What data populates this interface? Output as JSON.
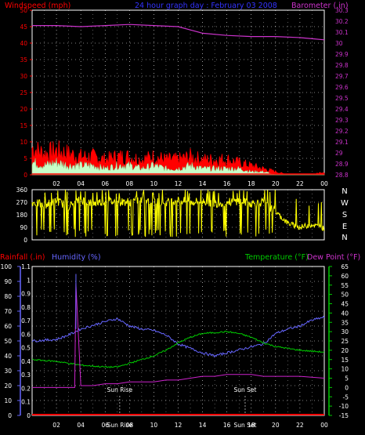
{
  "header": {
    "left": "Windspeed (mph)",
    "center": "24 hour graph day : February 03 2008",
    "right": "Barometer (.in)"
  },
  "colors": {
    "background": "#000000",
    "windspeed": "#ff0000",
    "wind_avg": "#c8ffc8",
    "barometer": "#cc33cc",
    "direction": "#ffff00",
    "rainfall": "#ff0000",
    "humidity": "#6666ff",
    "temperature": "#00cc00",
    "dewpoint": "#cc22cc",
    "grid": "#ffffff",
    "sun": "#ffffff"
  },
  "chart_data": [
    {
      "type": "area",
      "x_ticks": [
        "02",
        "04",
        "06",
        "08",
        "10",
        "12",
        "14",
        "16",
        "18",
        "20",
        "22",
        "00"
      ],
      "y_left_ticks": [
        "0",
        "5",
        "10",
        "15",
        "20",
        "25",
        "30",
        "35",
        "40",
        "45",
        "50"
      ],
      "y_left_range": [
        0,
        50
      ],
      "y_right_ticks": [
        "28.8",
        "28.9",
        "29",
        "29.1",
        "29.2",
        "29.3",
        "29.4",
        "29.5",
        "29.6",
        "29.7",
        "29.8",
        "29.9",
        "30",
        "30.1",
        "30.2",
        "30.3"
      ],
      "y_right_range": [
        28.8,
        30.3
      ],
      "series": [
        {
          "name": "Windspeed",
          "axis": "left",
          "x": [
            0,
            1,
            2,
            3,
            4,
            5,
            6,
            7,
            8,
            9,
            10,
            11,
            12,
            13,
            14,
            15,
            16,
            17,
            18,
            19,
            20,
            21,
            22,
            23,
            24
          ],
          "values": [
            9,
            7,
            8,
            7,
            6,
            6,
            5,
            6,
            6,
            5,
            6,
            5,
            5,
            6,
            5,
            5,
            5,
            4,
            3,
            2,
            1,
            0,
            0,
            0,
            1
          ]
        },
        {
          "name": "Wind Average",
          "axis": "left",
          "x": [
            0,
            1,
            2,
            3,
            4,
            5,
            6,
            7,
            8,
            9,
            10,
            11,
            12,
            13,
            14,
            15,
            16,
            17,
            18,
            19,
            20,
            21,
            22,
            23,
            24
          ],
          "values": [
            4,
            3,
            4,
            3,
            3,
            3,
            2,
            3,
            3,
            2,
            3,
            2,
            2,
            3,
            2,
            2,
            2,
            2,
            1,
            1,
            0,
            0,
            0,
            0,
            0
          ]
        },
        {
          "name": "Barometer",
          "axis": "right",
          "x": [
            0,
            2,
            4,
            6,
            8,
            10,
            12,
            13,
            14,
            16,
            18,
            20,
            22,
            23,
            24
          ],
          "values": [
            30.16,
            30.16,
            30.15,
            30.16,
            30.17,
            30.16,
            30.15,
            30.12,
            30.09,
            30.07,
            30.06,
            30.06,
            30.05,
            30.04,
            30.03
          ]
        }
      ]
    },
    {
      "type": "line",
      "x_ticks": [
        "02",
        "04",
        "06",
        "08",
        "10",
        "12",
        "14",
        "16",
        "18",
        "20",
        "22",
        "00"
      ],
      "y_left_ticks": [
        "0",
        "90",
        "180",
        "270",
        "360"
      ],
      "y_left_range": [
        0,
        360
      ],
      "y_right_ticks": [
        "N",
        "W",
        "S",
        "E",
        "N"
      ],
      "series": [
        {
          "name": "Wind Direction",
          "x": [
            0,
            1,
            2,
            3,
            4,
            5,
            6,
            7,
            8,
            9,
            10,
            11,
            12,
            13,
            14,
            15,
            16,
            17,
            18,
            19,
            20,
            21,
            22,
            23,
            24
          ],
          "values": [
            270,
            250,
            280,
            240,
            290,
            260,
            280,
            270,
            275,
            290,
            280,
            270,
            285,
            270,
            280,
            260,
            270,
            280,
            260,
            270,
            200,
            120,
            90,
            110,
            80
          ]
        }
      ]
    },
    {
      "type": "line",
      "x_ticks": [
        "02",
        "04",
        "06",
        "08",
        "10",
        "12",
        "14",
        "16",
        "18",
        "20",
        "22",
        "00"
      ],
      "y_left_ticks": [
        "0",
        "10",
        "20",
        "30",
        "40",
        "50",
        "60",
        "70",
        "80",
        "90",
        "100"
      ],
      "y_left_range": [
        0,
        100
      ],
      "y_rain_ticks": [
        "0",
        "0.1",
        "0.2",
        "0.3",
        "0.4",
        "0.5",
        "0.6",
        "0.7",
        "0.8",
        "0.9",
        "1",
        "1.1"
      ],
      "y_rain_range": [
        0,
        1.1
      ],
      "y_right_ticks": [
        "-15",
        "-10",
        "-5",
        "0",
        "5",
        "10",
        "15",
        "20",
        "25",
        "30",
        "35",
        "40",
        "45",
        "50",
        "55",
        "60",
        "65"
      ],
      "y_right_range": [
        -15,
        65
      ],
      "series": [
        {
          "name": "Rainfall",
          "axis": "rain",
          "x": [
            0,
            24
          ],
          "values": [
            0,
            0
          ]
        },
        {
          "name": "Humidity",
          "axis": "left",
          "x": [
            0,
            2,
            3,
            4,
            6,
            7,
            8,
            9,
            10,
            11,
            12,
            13,
            14,
            15,
            16,
            17,
            18,
            19,
            20,
            21,
            22,
            23,
            24
          ],
          "values": [
            50,
            51,
            54,
            58,
            63,
            65,
            60,
            58,
            57,
            54,
            48,
            45,
            42,
            40,
            42,
            44,
            46,
            48,
            55,
            58,
            60,
            64,
            66
          ]
        },
        {
          "name": "Temperature",
          "axis": "right",
          "x": [
            0,
            2,
            4,
            6,
            7,
            8,
            10,
            11,
            12,
            13,
            14,
            16,
            17,
            18,
            19,
            20,
            22,
            24
          ],
          "values": [
            15,
            14,
            12,
            11,
            11,
            13,
            17,
            20,
            24,
            27,
            29,
            30,
            29,
            27,
            24,
            22,
            20,
            19
          ]
        },
        {
          "name": "Dew Point",
          "axis": "right",
          "x": [
            0,
            2,
            3,
            3.5,
            3.6,
            4,
            5,
            6,
            7,
            8,
            9,
            10,
            11,
            12,
            13,
            14,
            15,
            16,
            17,
            18,
            19,
            20,
            22,
            24
          ],
          "values": [
            0,
            0,
            0,
            0,
            56,
            1,
            1,
            2,
            2,
            3,
            3,
            3,
            4,
            4,
            5,
            6,
            6,
            7,
            7,
            7,
            6,
            6,
            6,
            5
          ]
        }
      ],
      "annotations": [
        {
          "text": "Sun Rise",
          "x": 7.2
        },
        {
          "text": "Sun Set",
          "x": 17.5
        }
      ]
    }
  ],
  "legend_bottom": {
    "rain": "Rainfall (.in)",
    "humidity": "Humidity (%)",
    "temp": "Temperature (°F)",
    "dew": "Dew Point (°F)"
  }
}
